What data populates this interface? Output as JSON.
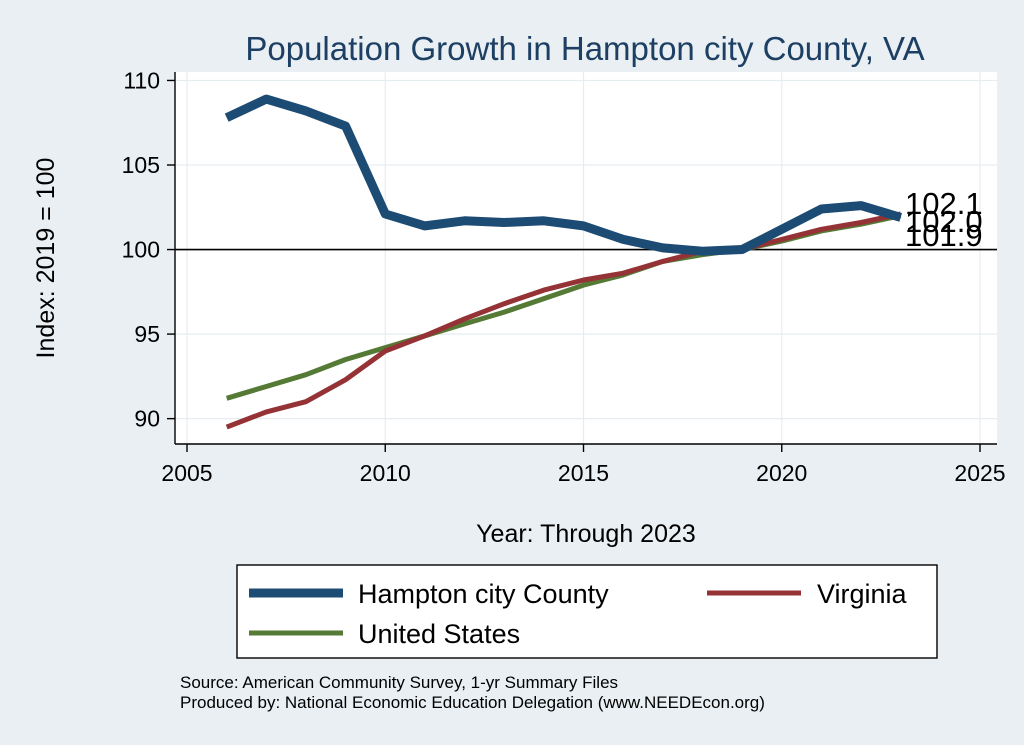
{
  "chart_data": {
    "type": "line",
    "title": "Population Growth in Hampton city County, VA",
    "xlabel": "Year: Through 2023",
    "ylabel": "Index: 2019 = 100",
    "xlim": [
      2005,
      2025
    ],
    "ylim": [
      88.5,
      110.5
    ],
    "xticks": [
      "2005",
      "2010",
      "2015",
      "2020",
      "2025"
    ],
    "yticks": [
      "90",
      "95",
      "100",
      "105",
      "110"
    ],
    "reference_line": 100,
    "grid": true,
    "legend_position": "bottom",
    "series": [
      {
        "name": "Hampton city  County",
        "color": "#1c4b74",
        "x": [
          2006,
          2007,
          2008,
          2009,
          2010,
          2011,
          2012,
          2013,
          2014,
          2015,
          2016,
          2017,
          2018,
          2019,
          2020,
          2021,
          2022,
          2023
        ],
        "y": [
          107.8,
          108.9,
          108.2,
          107.3,
          102.1,
          101.4,
          101.7,
          101.6,
          101.7,
          101.4,
          100.6,
          100.1,
          99.9,
          100.0,
          101.2,
          102.4,
          102.6,
          101.9
        ],
        "end_label": "101.9"
      },
      {
        "name": "Virginia",
        "color": "#953236",
        "x": [
          2006,
          2007,
          2008,
          2009,
          2010,
          2011,
          2012,
          2013,
          2014,
          2015,
          2016,
          2017,
          2018,
          2019,
          2020,
          2021,
          2022,
          2023
        ],
        "y": [
          89.5,
          90.4,
          91.0,
          92.3,
          94.0,
          94.9,
          95.9,
          96.8,
          97.6,
          98.2,
          98.6,
          99.3,
          99.9,
          100.0,
          100.6,
          101.2,
          101.6,
          102.1
        ],
        "end_label": "102.1"
      },
      {
        "name": "United States",
        "color": "#557a35",
        "x": [
          2006,
          2007,
          2008,
          2009,
          2010,
          2011,
          2012,
          2013,
          2014,
          2015,
          2016,
          2017,
          2018,
          2019,
          2020,
          2021,
          2022,
          2023
        ],
        "y": [
          91.2,
          91.9,
          92.6,
          93.5,
          94.2,
          94.9,
          95.6,
          96.3,
          97.1,
          97.9,
          98.5,
          99.3,
          99.7,
          100.0,
          100.5,
          101.1,
          101.5,
          102.0
        ],
        "end_label": "102.0"
      }
    ]
  },
  "legend": {
    "items": [
      "Hampton city  County",
      "Virginia",
      "United States"
    ]
  },
  "footer": {
    "source": "Source: American Community Survey, 1-yr Summary Files",
    "produced_by": "Produced by: National Economic Education Delegation (www.NEEDEcon.org)"
  }
}
